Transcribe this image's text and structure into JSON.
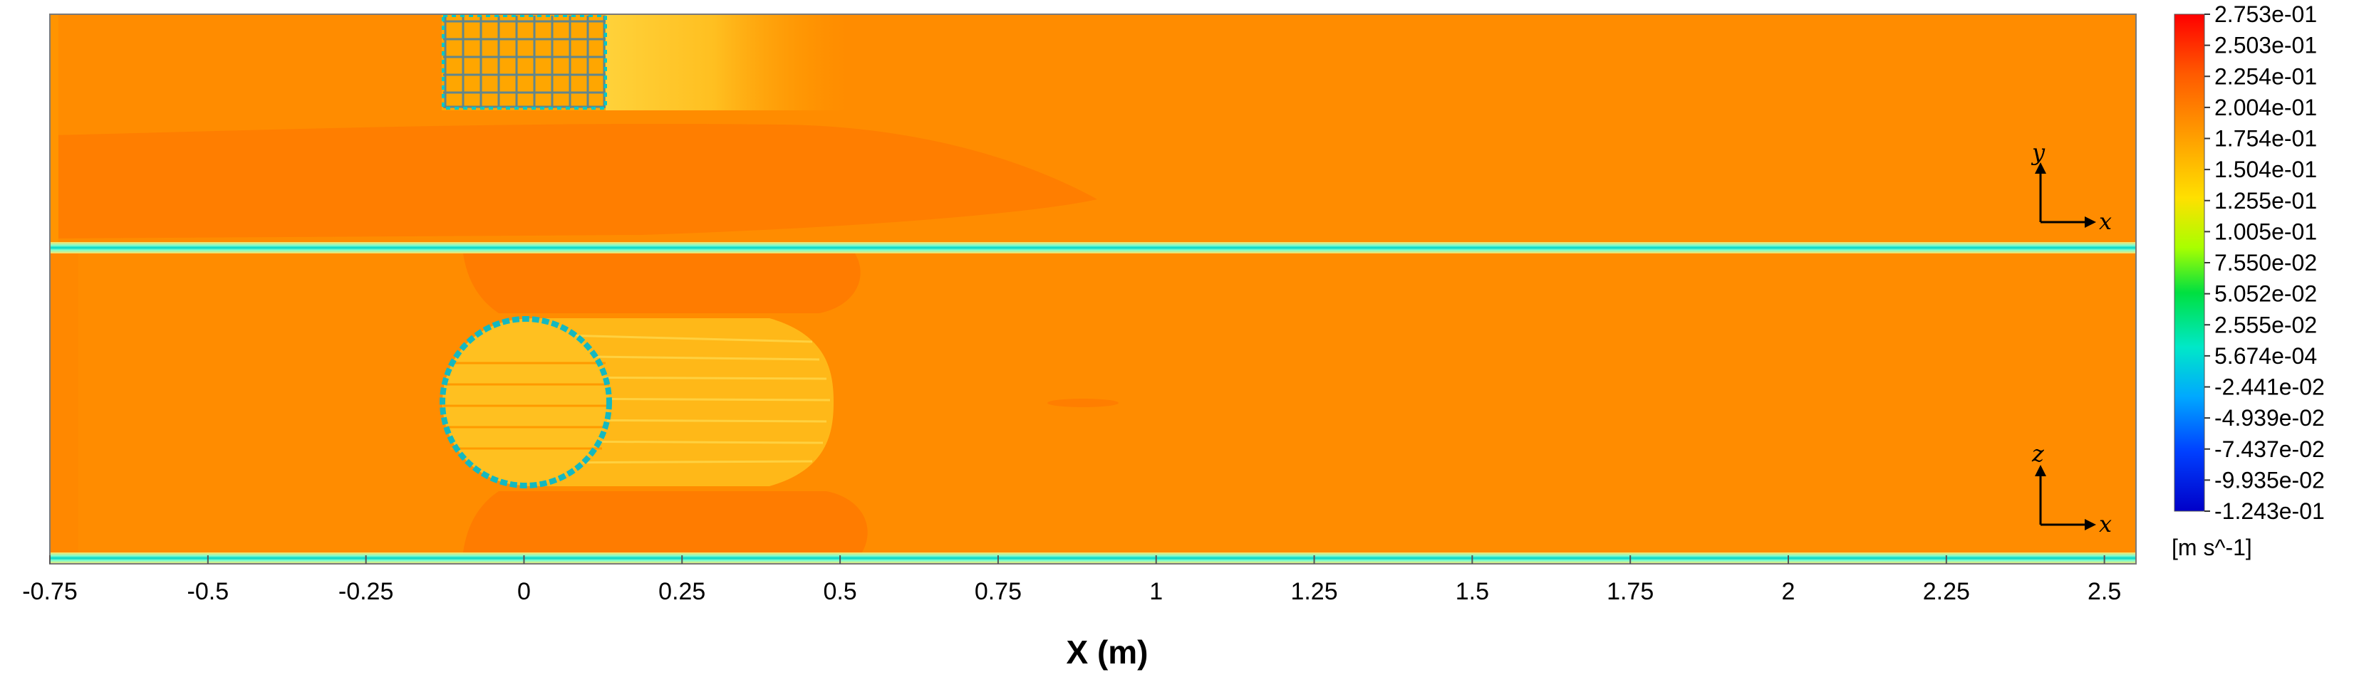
{
  "chart_data": {
    "type": "heatmap",
    "description_panels": [
      {
        "plane": "xy",
        "axis_labels": [
          "y",
          "x"
        ]
      },
      {
        "plane": "xz",
        "axis_labels": [
          "z",
          "x"
        ]
      }
    ],
    "xlabel": "X (m)",
    "x_ticks": [
      "-0.75",
      "-0.5",
      "-0.25",
      "0",
      "0.25",
      "0.5",
      "0.75",
      "1",
      "1.25",
      "1.5",
      "1.75",
      "2",
      "2.25",
      "2.5"
    ],
    "x_tick_values": [
      -0.75,
      -0.5,
      -0.25,
      0,
      0.25,
      0.5,
      0.75,
      1,
      1.25,
      1.5,
      1.75,
      2,
      2.25,
      2.5
    ],
    "xlim": [
      -0.75,
      2.55
    ],
    "colorbar": {
      "ticks": [
        "2.753e-01",
        "2.503e-01",
        "2.254e-01",
        "2.004e-01",
        "1.754e-01",
        "1.504e-01",
        "1.255e-01",
        "1.005e-01",
        "7.550e-02",
        "5.052e-02",
        "2.555e-02",
        "5.674e-04",
        "-2.441e-02",
        "-4.939e-02",
        "-7.437e-02",
        "-9.935e-02",
        "-1.243e-01"
      ],
      "unit": "[m s^-1]",
      "range": [
        -0.1243,
        0.2753
      ]
    },
    "colors": {
      "background_flow": "#FF8C00",
      "wake_fast": "#FFB300",
      "wake_dark": "#FF7A00",
      "wall_low": "#00D4C8"
    }
  }
}
